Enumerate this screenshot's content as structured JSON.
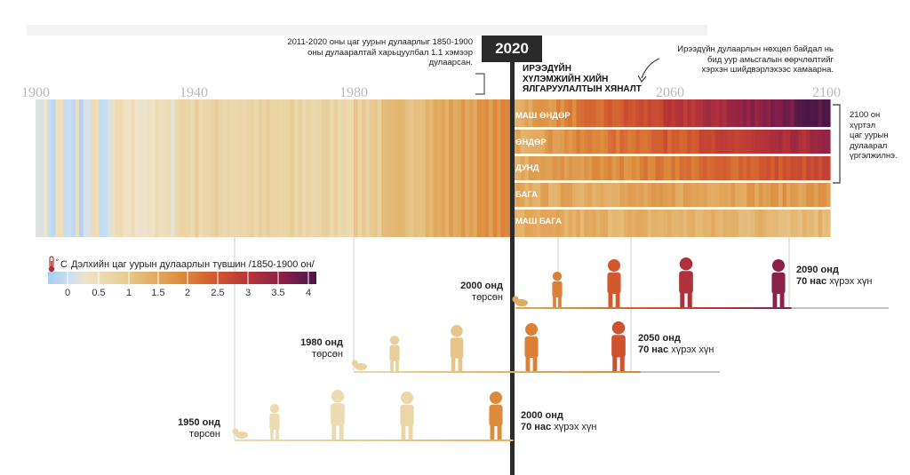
{
  "timeline": {
    "year_labels": [
      "1900",
      "1940",
      "1980",
      "2060",
      "2100"
    ],
    "marker_year": "2020"
  },
  "notes": {
    "warming": [
      "2011-2020 оны цаг уурын дулаарлыг 1850-1900",
      "оны дулааралтай харьцуулбал 1.1 хэмээр",
      "дулаарсан."
    ],
    "future": [
      "Ирээдүйн дулаарлын нөхцөл байдал нь",
      "бид уур амьсгалын өөрчлөлтийг",
      "хэрхэн шийдвэрлэхээс хамаарна."
    ],
    "continue": [
      "2100 он",
      "хүртэл",
      "цаг уурын",
      "дулаарал",
      "үргэлжилнэ."
    ]
  },
  "projection": {
    "title": [
      "ИРЭЭДҮЙН",
      "ХҮЛЭМЖИЙН ХИЙН",
      "ЯЛГАРУУЛАЛТЫН ХЯНАЛТ"
    ],
    "scenarios": [
      "МАШ ӨНДӨР",
      "ӨНДӨР",
      "ДУНД",
      "БАГА",
      "МАШ БАГА"
    ],
    "scenario_end_temps": [
      4.0,
      3.3,
      2.7,
      1.8,
      1.4
    ]
  },
  "legend": {
    "title": "Дэлхийн цаг уурын дулаарлын түвшин /1850-1900  он/",
    "ticks": [
      "0",
      "0.5",
      "1",
      "1.5",
      "2",
      "2.5",
      "3",
      "3.5",
      "4"
    ],
    "colors": [
      "#a6cdef",
      "#efe3c6",
      "#ead2a0",
      "#e3b168",
      "#dc8a3c",
      "#d2592e",
      "#b83537",
      "#8b2049",
      "#4a1748"
    ]
  },
  "generations": {
    "g2000_born": [
      "2000 онд",
      "төрсөн"
    ],
    "g1980_born": [
      "1980 онд",
      "төрсөн"
    ],
    "g1950_born": [
      "1950 онд",
      "төрсөн"
    ],
    "age_2090": [
      "2090 онд",
      "70 нас",
      "хүрэх хүн"
    ],
    "age_2050": [
      "2050 онд",
      "70 нас",
      "хүрэх хүн"
    ],
    "age_2000": [
      "2000 онд",
      "70 нас",
      "хүрэх хүн"
    ]
  }
}
